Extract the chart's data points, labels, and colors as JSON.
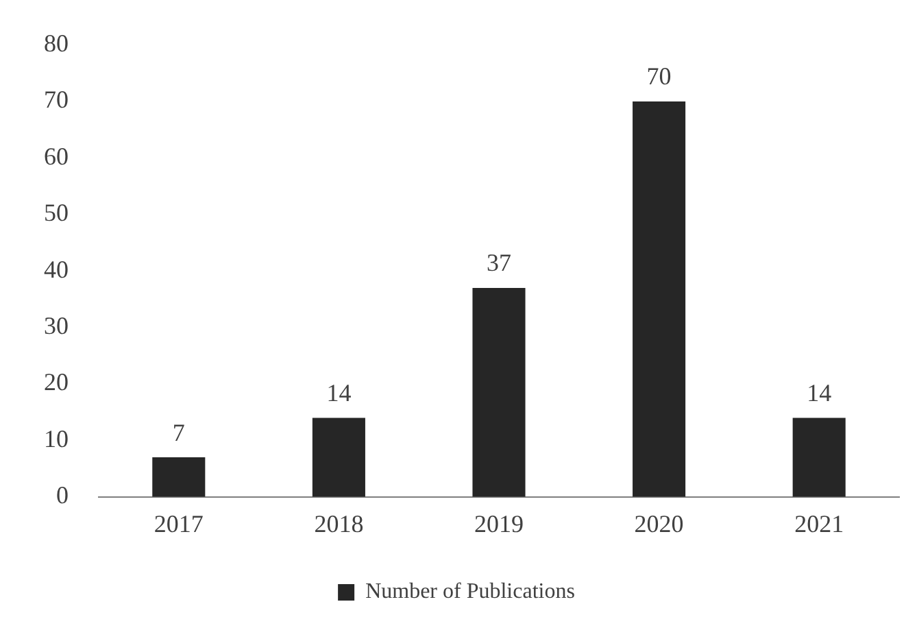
{
  "chart_data": {
    "type": "bar",
    "categories": [
      "2017",
      "2018",
      "2019",
      "2020",
      "2021"
    ],
    "series": [
      {
        "name": "Number of Publications",
        "color": "#262626",
        "values": [
          7,
          14,
          37,
          70,
          14
        ]
      }
    ],
    "ylim": [
      0,
      80
    ],
    "yticks": [
      0,
      10,
      20,
      30,
      40,
      50,
      60,
      70,
      80
    ],
    "grid": false,
    "legend": "bottom",
    "data_labels": true
  }
}
